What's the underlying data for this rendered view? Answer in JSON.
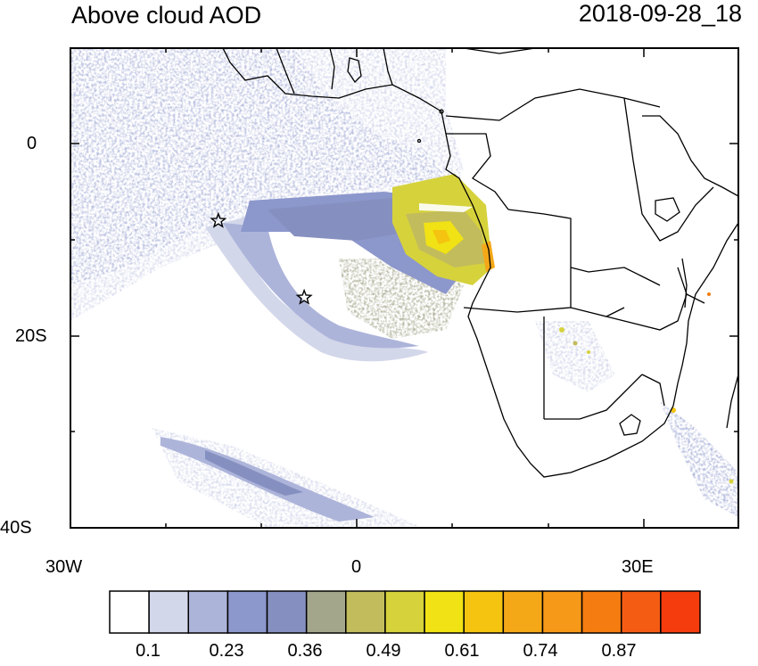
{
  "header": {
    "title": "Above cloud AOD",
    "timestamp": "2018-09-28_18"
  },
  "axes": {
    "y_ticks": [
      "0",
      "20S",
      "40S"
    ],
    "x_ticks": [
      "30W",
      "0",
      "30E"
    ]
  },
  "colorbar": {
    "colors": [
      "#ffffff",
      "#d3d7ea",
      "#adb4da",
      "#8c97cc",
      "#8690c0",
      "#a4a68c",
      "#c2bc5c",
      "#d6d23c",
      "#f0e214",
      "#f4c410",
      "#f4a818",
      "#f69818",
      "#f47c10",
      "#f45c14",
      "#f43c0c"
    ],
    "labels": [
      "0.1",
      "0.23",
      "0.36",
      "0.49",
      "0.61",
      "0.74",
      "0.87"
    ]
  },
  "markers": {
    "stars": [
      {
        "lon": -14.5,
        "lat": -8.0
      },
      {
        "lon": -5.5,
        "lat": -16.0
      }
    ]
  },
  "map_extent": {
    "lon_min": -30,
    "lon_max": 40,
    "lat_min": -40,
    "lat_max": 10
  }
}
